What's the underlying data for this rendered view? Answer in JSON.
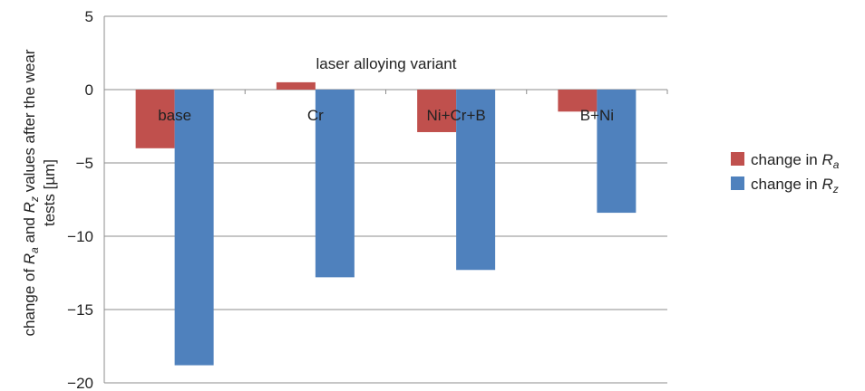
{
  "chart_data": {
    "type": "bar",
    "xlabel": "laser alloying variant",
    "ylabel": "change of Ra and Rz values after the wear tests [µm]",
    "ylabel_parts": {
      "line1_pre": "change of ",
      "ra_main": "R",
      "ra_sub": "a",
      "mid": " and ",
      "rz_main": "R",
      "rz_sub": "z",
      "line1_post": " values after the wear",
      "line2": "tests [µm]"
    },
    "categories": [
      "base",
      "Cr",
      "Ni+Cr+B",
      "B+Ni"
    ],
    "series": [
      {
        "name": "change in Ra",
        "legend_pre": "change in ",
        "legend_main": "R",
        "legend_sub": "a",
        "color": "#c0504d",
        "values": [
          -4.0,
          0.5,
          -2.9,
          -1.5
        ]
      },
      {
        "name": "change in Rz",
        "legend_pre": "change in ",
        "legend_main": "R",
        "legend_sub": "z",
        "color": "#4f81bd",
        "values": [
          -18.8,
          -12.8,
          -12.3,
          -8.4
        ]
      }
    ],
    "ylim": [
      -20,
      5
    ],
    "yticks": [
      5,
      0,
      -5,
      -10,
      -15,
      -20
    ],
    "grid": true,
    "legend": "right"
  }
}
